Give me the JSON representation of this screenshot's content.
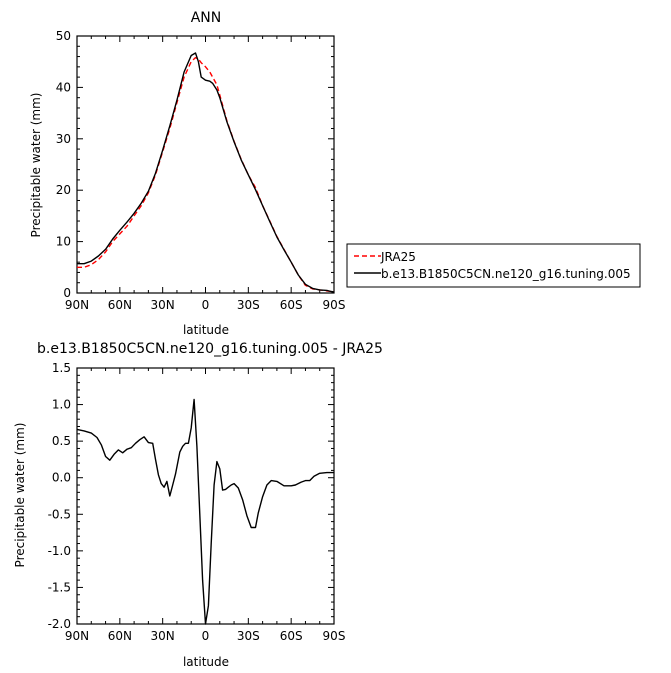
{
  "chart_data": [
    {
      "type": "line",
      "title": "ANN",
      "xlabel": "latitude",
      "ylabel": "Precipitable water (mm)",
      "xlim": [
        90,
        -90
      ],
      "ylim": [
        0,
        50
      ],
      "xticks": [
        90,
        60,
        30,
        0,
        -30,
        -60,
        -90
      ],
      "xtick_labels": [
        "90N",
        "60N",
        "30N",
        "0",
        "30S",
        "60S",
        "90S"
      ],
      "yticks": [
        0,
        10,
        20,
        30,
        40,
        50
      ],
      "ytick_labels": [
        "0",
        "10",
        "20",
        "30",
        "40",
        "50"
      ],
      "legend_position": "right, outside plot",
      "series": [
        {
          "name": "JRA25",
          "color": "#ff0000",
          "dash": "dashed",
          "x": [
            90,
            85,
            80,
            75,
            70,
            65,
            60,
            55,
            50,
            45,
            40,
            35,
            30,
            25,
            20,
            15,
            10,
            7,
            5,
            3,
            0,
            -3,
            -5,
            -8,
            -10,
            -15,
            -20,
            -25,
            -30,
            -35,
            -40,
            -45,
            -50,
            -55,
            -60,
            -65,
            -70,
            -75,
            -80,
            -85,
            -88,
            -90
          ],
          "y": [
            5.0,
            5.0,
            5.5,
            6.5,
            8.0,
            10.0,
            11.5,
            13.0,
            15.0,
            17.0,
            19.5,
            23.0,
            27.5,
            32.0,
            37.0,
            42.0,
            45.0,
            45.8,
            45.5,
            44.8,
            44.0,
            43.0,
            42.0,
            40.5,
            38.5,
            33.5,
            29.5,
            26.0,
            23.0,
            20.5,
            17.0,
            14.0,
            11.0,
            8.5,
            6.0,
            3.5,
            1.5,
            0.8,
            0.6,
            0.4,
            0.3,
            0.3
          ]
        },
        {
          "name": "b.e13.B1850C5CN.ne120_g16.tuning.005",
          "color": "#000000",
          "dash": "solid",
          "x": [
            90,
            85,
            80,
            75,
            70,
            65,
            60,
            55,
            50,
            45,
            40,
            35,
            30,
            25,
            20,
            15,
            10,
            7,
            5,
            3,
            0,
            -3,
            -5,
            -8,
            -10,
            -15,
            -20,
            -25,
            -30,
            -35,
            -40,
            -45,
            -50,
            -55,
            -60,
            -65,
            -70,
            -75,
            -80,
            -85,
            -88,
            -90
          ],
          "y": [
            5.7,
            5.7,
            6.2,
            7.2,
            8.5,
            10.5,
            12.2,
            13.8,
            15.5,
            17.5,
            19.8,
            23.3,
            27.8,
            32.5,
            37.5,
            43.0,
            46.2,
            46.7,
            45.0,
            42.0,
            41.4,
            41.2,
            40.8,
            39.5,
            38.0,
            33.3,
            29.4,
            25.9,
            23.0,
            20.1,
            17.0,
            13.9,
            10.9,
            8.4,
            6.0,
            3.5,
            1.7,
            0.9,
            0.6,
            0.5,
            0.3,
            0.2
          ]
        }
      ]
    },
    {
      "type": "line",
      "title": "b.e13.B1850C5CN.ne120_g16.tuning.005 - JRA25",
      "xlabel": "latitude",
      "ylabel": "Precipitable water (mm)",
      "xlim": [
        90,
        -90
      ],
      "ylim": [
        -2.0,
        1.5
      ],
      "xticks": [
        90,
        60,
        30,
        0,
        -30,
        -60,
        -90
      ],
      "xtick_labels": [
        "90N",
        "60N",
        "30N",
        "0",
        "30S",
        "60S",
        "90S"
      ],
      "yticks": [
        -2.0,
        -1.5,
        -1.0,
        -0.5,
        0.0,
        0.5,
        1.0,
        1.5
      ],
      "ytick_labels": [
        "-2.0",
        "-1.5",
        "-1.0",
        "-0.5",
        "0.0",
        "0.5",
        "1.0",
        "1.5"
      ],
      "series": [
        {
          "color": "#000000",
          "dash": "solid",
          "x": [
            90,
            85,
            80,
            76,
            73,
            70,
            67,
            64,
            61,
            58,
            55,
            52,
            49,
            46,
            43,
            40,
            37,
            35,
            33,
            31,
            29,
            27,
            25,
            23,
            21,
            18,
            16,
            14,
            12,
            10,
            8,
            6,
            4,
            2,
            0,
            -2,
            -4,
            -6,
            -8,
            -10,
            -12,
            -14,
            -16,
            -18,
            -20,
            -23,
            -26,
            -29,
            -32,
            -35,
            -37,
            -40,
            -43,
            -46,
            -50,
            -55,
            -60,
            -63,
            -67,
            -70,
            -73,
            -76,
            -80,
            -85,
            -90
          ],
          "y": [
            0.66,
            0.64,
            0.61,
            0.55,
            0.45,
            0.29,
            0.24,
            0.32,
            0.38,
            0.34,
            0.39,
            0.41,
            0.47,
            0.52,
            0.56,
            0.48,
            0.47,
            0.25,
            0.04,
            -0.08,
            -0.13,
            -0.05,
            -0.25,
            -0.1,
            0.05,
            0.35,
            0.43,
            0.47,
            0.47,
            0.68,
            1.07,
            0.43,
            -0.5,
            -1.4,
            -2.0,
            -1.75,
            -0.9,
            -0.1,
            0.22,
            0.12,
            -0.17,
            -0.16,
            -0.13,
            -0.1,
            -0.08,
            -0.14,
            -0.3,
            -0.52,
            -0.68,
            -0.68,
            -0.48,
            -0.26,
            -0.1,
            -0.04,
            -0.05,
            -0.11,
            -0.11,
            -0.1,
            -0.06,
            -0.04,
            -0.04,
            0.02,
            0.06,
            0.07,
            0.07
          ]
        }
      ]
    }
  ]
}
